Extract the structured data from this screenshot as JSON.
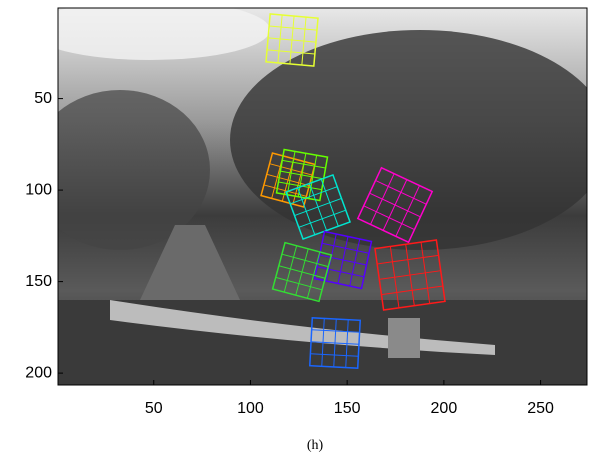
{
  "chart_data": {
    "type": "image",
    "caption": "(h)",
    "xlim": [
      0.5,
      274
    ],
    "xticks": [
      50,
      100,
      150,
      200,
      250
    ],
    "ylim": [
      0.5,
      206.5
    ],
    "yticks": [
      50,
      100,
      150,
      200
    ],
    "y_reversed": true
  }
}
